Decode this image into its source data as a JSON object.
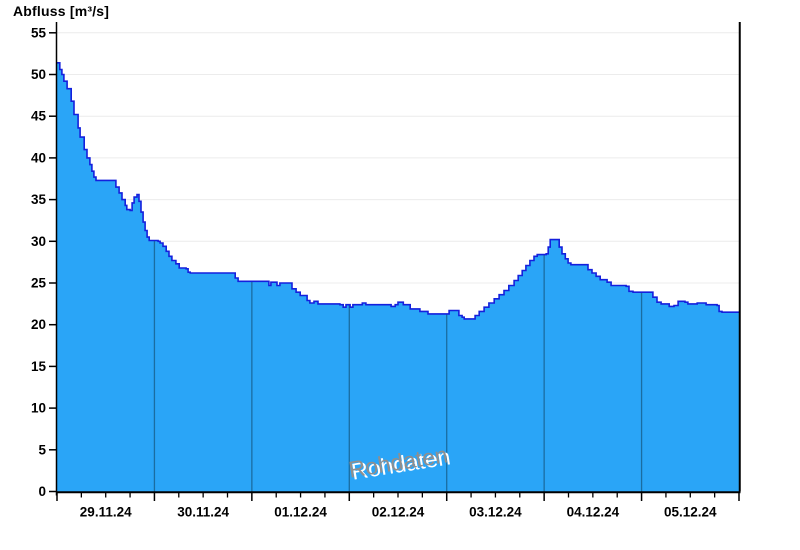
{
  "chart_data": {
    "type": "area",
    "title": "Abfluss [m³/s]",
    "watermark_text": "Rohdaten",
    "y_axis": {
      "min": 0,
      "max": 55,
      "tick_step": 5,
      "tick_labels": [
        "0",
        "5",
        "10",
        "15",
        "20",
        "25",
        "30",
        "35",
        "40",
        "45",
        "50",
        "55"
      ],
      "grid": true
    },
    "x_axis": {
      "tick_labels": [
        "29.11.24",
        "30.11.24",
        "01.12.24",
        "02.12.24",
        "03.12.24",
        "04.12.24",
        "05.12.24"
      ],
      "days_shown": 7,
      "minor_ticks_per_day": 4,
      "range_hours": 168
    },
    "series": [
      {
        "name": "Abfluss Rohdaten",
        "unit": "m³/s",
        "points_unit": "[hours since 29.11.24 00:00, m³/s]",
        "points": [
          [
            0,
            51.4
          ],
          [
            0.7,
            50.6
          ],
          [
            1.2,
            50
          ],
          [
            1.7,
            49.2
          ],
          [
            2.5,
            48.3
          ],
          [
            3.5,
            46.8
          ],
          [
            4.2,
            45.2
          ],
          [
            5.2,
            43.6
          ],
          [
            5.7,
            42.5
          ],
          [
            6.7,
            41
          ],
          [
            7.4,
            40
          ],
          [
            8.1,
            39.2
          ],
          [
            8.6,
            38.4
          ],
          [
            9.1,
            37.7
          ],
          [
            9.6,
            37.3
          ],
          [
            13.8,
            37.3
          ],
          [
            14.5,
            36.5
          ],
          [
            15.3,
            35.8
          ],
          [
            16,
            35
          ],
          [
            16.8,
            34.3
          ],
          [
            17.2,
            33.8
          ],
          [
            18,
            33.7
          ],
          [
            18.5,
            34.6
          ],
          [
            19,
            35.3
          ],
          [
            19.7,
            35.6
          ],
          [
            20.2,
            34.8
          ],
          [
            20.7,
            33.5
          ],
          [
            21.2,
            32.3
          ],
          [
            21.7,
            31.3
          ],
          [
            22.2,
            30.5
          ],
          [
            22.7,
            30.1
          ],
          [
            24.9,
            30
          ],
          [
            25.4,
            29.8
          ],
          [
            26.1,
            29.4
          ],
          [
            26.9,
            28.8
          ],
          [
            27.6,
            28.2
          ],
          [
            28.3,
            27.7
          ],
          [
            29.3,
            27.3
          ],
          [
            30.1,
            26.8
          ],
          [
            31.8,
            26.7
          ],
          [
            32.3,
            26.3
          ],
          [
            32.8,
            26.2
          ],
          [
            43.1,
            26.2
          ],
          [
            43.9,
            25.6
          ],
          [
            44.6,
            25.2
          ],
          [
            51.5,
            25.2
          ],
          [
            52.2,
            24.7
          ],
          [
            52.7,
            25.1
          ],
          [
            54.2,
            24.7
          ],
          [
            54.9,
            25
          ],
          [
            57.4,
            25
          ],
          [
            57.9,
            24.3
          ],
          [
            58.9,
            23.9
          ],
          [
            59.9,
            23.5
          ],
          [
            61.6,
            22.9
          ],
          [
            62.3,
            22.6
          ],
          [
            63.3,
            22.8
          ],
          [
            64.3,
            22.5
          ],
          [
            69.7,
            22.4
          ],
          [
            70.5,
            22.1
          ],
          [
            71.2,
            22.4
          ],
          [
            72.2,
            22.1
          ],
          [
            72.9,
            22.4
          ],
          [
            75.2,
            22.6
          ],
          [
            76.1,
            22.4
          ],
          [
            82.3,
            22.2
          ],
          [
            83.3,
            22.4
          ],
          [
            84,
            22.7
          ],
          [
            85.3,
            22.4
          ],
          [
            87,
            21.9
          ],
          [
            89.4,
            21.6
          ],
          [
            91.4,
            21.3
          ],
          [
            95.9,
            21.3
          ],
          [
            96.6,
            21.7
          ],
          [
            98.3,
            21.7
          ],
          [
            99,
            21.1
          ],
          [
            99.8,
            20.9
          ],
          [
            100.3,
            20.7
          ],
          [
            102.2,
            20.7
          ],
          [
            103,
            21.1
          ],
          [
            104,
            21.6
          ],
          [
            105.2,
            22.1
          ],
          [
            106.4,
            22.6
          ],
          [
            107.7,
            23.1
          ],
          [
            108.9,
            23.6
          ],
          [
            110.1,
            24.1
          ],
          [
            111.3,
            24.7
          ],
          [
            112.6,
            25.3
          ],
          [
            113.6,
            25.9
          ],
          [
            114.6,
            26.5
          ],
          [
            115.5,
            27.1
          ],
          [
            116.5,
            27.7
          ],
          [
            117.5,
            28.2
          ],
          [
            118.3,
            28.4
          ],
          [
            120.5,
            28.5
          ],
          [
            121,
            29.3
          ],
          [
            121.5,
            30.2
          ],
          [
            123.2,
            30.2
          ],
          [
            123.7,
            29.3
          ],
          [
            124.4,
            28.5
          ],
          [
            125.2,
            27.9
          ],
          [
            125.9,
            27.4
          ],
          [
            126.6,
            27.2
          ],
          [
            130.1,
            27.2
          ],
          [
            130.8,
            26.6
          ],
          [
            131.8,
            26.2
          ],
          [
            132.8,
            25.8
          ],
          [
            133.8,
            25.4
          ],
          [
            135.5,
            25.1
          ],
          [
            136.5,
            24.7
          ],
          [
            140.2,
            24.6
          ],
          [
            140.9,
            24
          ],
          [
            141.9,
            23.9
          ],
          [
            146.1,
            23.9
          ],
          [
            146.8,
            23.3
          ],
          [
            147.8,
            22.7
          ],
          [
            148.8,
            22.5
          ],
          [
            150.3,
            22.5
          ],
          [
            150.8,
            22.2
          ],
          [
            152,
            22.3
          ],
          [
            153,
            22.8
          ],
          [
            154.7,
            22.7
          ],
          [
            155.4,
            22.5
          ],
          [
            157.7,
            22.6
          ],
          [
            159.1,
            22.6
          ],
          [
            159.9,
            22.4
          ],
          [
            162.6,
            22.3
          ],
          [
            163.1,
            21.6
          ],
          [
            163.8,
            21.5
          ],
          [
            168,
            21.5
          ]
        ]
      }
    ],
    "colors": {
      "background": "#ffffff",
      "area_fill": "#2aa5f7",
      "line": "#1420dd",
      "day_line": "#1a6da1",
      "gridline": "#ececec",
      "axis": "#000000",
      "watermark": "#8f8f8f"
    }
  }
}
